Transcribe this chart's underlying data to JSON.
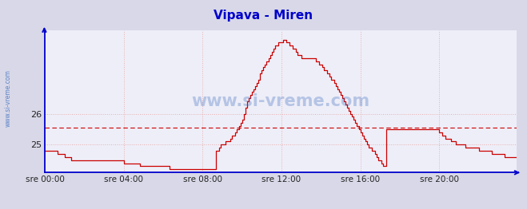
{
  "title": "Vipava - Miren",
  "title_color": "#0000cc",
  "title_fontsize": 11,
  "ylabel_text": "www.si-vreme.com",
  "watermark": "www.si-vreme.com",
  "line_color": "#cc0000",
  "ref_line_color": "#cc0000",
  "ref_line_value": 25.55,
  "axis_color": "#0000cc",
  "grid_color": "#e8b0b0",
  "bg_color": "#d8d8e8",
  "plot_bg_color": "#eeeef8",
  "x_tick_labels": [
    "sre 00:00",
    "sre 04:00",
    "sre 08:00",
    "sre 12:00",
    "sre 16:00",
    "sre 20:00"
  ],
  "x_tick_positions": [
    0,
    48,
    96,
    144,
    192,
    240
  ],
  "ylim": [
    24.1,
    28.7
  ],
  "yticks": [
    25,
    26
  ],
  "total_points": 288,
  "temperature_data": [
    24.8,
    24.8,
    24.8,
    24.8,
    24.8,
    24.8,
    24.8,
    24.8,
    24.7,
    24.7,
    24.7,
    24.7,
    24.6,
    24.6,
    24.6,
    24.6,
    24.5,
    24.5,
    24.5,
    24.5,
    24.5,
    24.5,
    24.5,
    24.5,
    24.5,
    24.5,
    24.5,
    24.5,
    24.5,
    24.5,
    24.5,
    24.5,
    24.5,
    24.5,
    24.5,
    24.5,
    24.5,
    24.5,
    24.5,
    24.5,
    24.5,
    24.5,
    24.5,
    24.5,
    24.5,
    24.5,
    24.5,
    24.5,
    24.4,
    24.4,
    24.4,
    24.4,
    24.4,
    24.4,
    24.4,
    24.4,
    24.4,
    24.4,
    24.3,
    24.3,
    24.3,
    24.3,
    24.3,
    24.3,
    24.3,
    24.3,
    24.3,
    24.3,
    24.3,
    24.3,
    24.3,
    24.3,
    24.3,
    24.3,
    24.3,
    24.3,
    24.2,
    24.2,
    24.2,
    24.2,
    24.2,
    24.2,
    24.2,
    24.2,
    24.2,
    24.2,
    24.2,
    24.2,
    24.2,
    24.2,
    24.2,
    24.2,
    24.2,
    24.2,
    24.2,
    24.2,
    24.2,
    24.2,
    24.2,
    24.2,
    24.2,
    24.2,
    24.2,
    24.2,
    24.8,
    24.8,
    24.9,
    25.0,
    25.0,
    25.0,
    25.1,
    25.1,
    25.1,
    25.2,
    25.3,
    25.3,
    25.4,
    25.5,
    25.6,
    25.7,
    25.8,
    26.0,
    26.2,
    26.4,
    26.5,
    26.6,
    26.7,
    26.8,
    26.9,
    27.0,
    27.1,
    27.3,
    27.4,
    27.5,
    27.6,
    27.7,
    27.8,
    27.9,
    28.0,
    28.1,
    28.2,
    28.2,
    28.3,
    28.3,
    28.3,
    28.4,
    28.4,
    28.3,
    28.3,
    28.2,
    28.2,
    28.1,
    28.1,
    28.0,
    27.9,
    27.9,
    27.8,
    27.8,
    27.8,
    27.8,
    27.8,
    27.8,
    27.8,
    27.8,
    27.8,
    27.7,
    27.7,
    27.6,
    27.6,
    27.5,
    27.4,
    27.4,
    27.3,
    27.2,
    27.1,
    27.1,
    27.0,
    26.9,
    26.8,
    26.7,
    26.6,
    26.5,
    26.4,
    26.3,
    26.2,
    26.1,
    26.0,
    25.9,
    25.8,
    25.7,
    25.6,
    25.5,
    25.4,
    25.3,
    25.2,
    25.1,
    25.0,
    24.9,
    24.9,
    24.8,
    24.8,
    24.7,
    24.6,
    24.5,
    24.5,
    24.4,
    24.3,
    24.3,
    25.5,
    25.5,
    25.5,
    25.5,
    25.5,
    25.5,
    25.5,
    25.5,
    25.5,
    25.5,
    25.5,
    25.5,
    25.5,
    25.5,
    25.5,
    25.5,
    25.5,
    25.5,
    25.5,
    25.5,
    25.5,
    25.5,
    25.5,
    25.5,
    25.5,
    25.5,
    25.5,
    25.5,
    25.5,
    25.5,
    25.5,
    25.5,
    25.4,
    25.4,
    25.3,
    25.3,
    25.2,
    25.2,
    25.2,
    25.1,
    25.1,
    25.1,
    25.0,
    25.0,
    25.0,
    25.0,
    25.0,
    25.0,
    24.9,
    24.9,
    24.9,
    24.9,
    24.9,
    24.9,
    24.9,
    24.9,
    24.8,
    24.8,
    24.8,
    24.8,
    24.8,
    24.8,
    24.8,
    24.8,
    24.7,
    24.7,
    24.7,
    24.7,
    24.7,
    24.7,
    24.7,
    24.7,
    24.6,
    24.6,
    24.6,
    24.6,
    24.6,
    24.6,
    24.6,
    24.6
  ]
}
